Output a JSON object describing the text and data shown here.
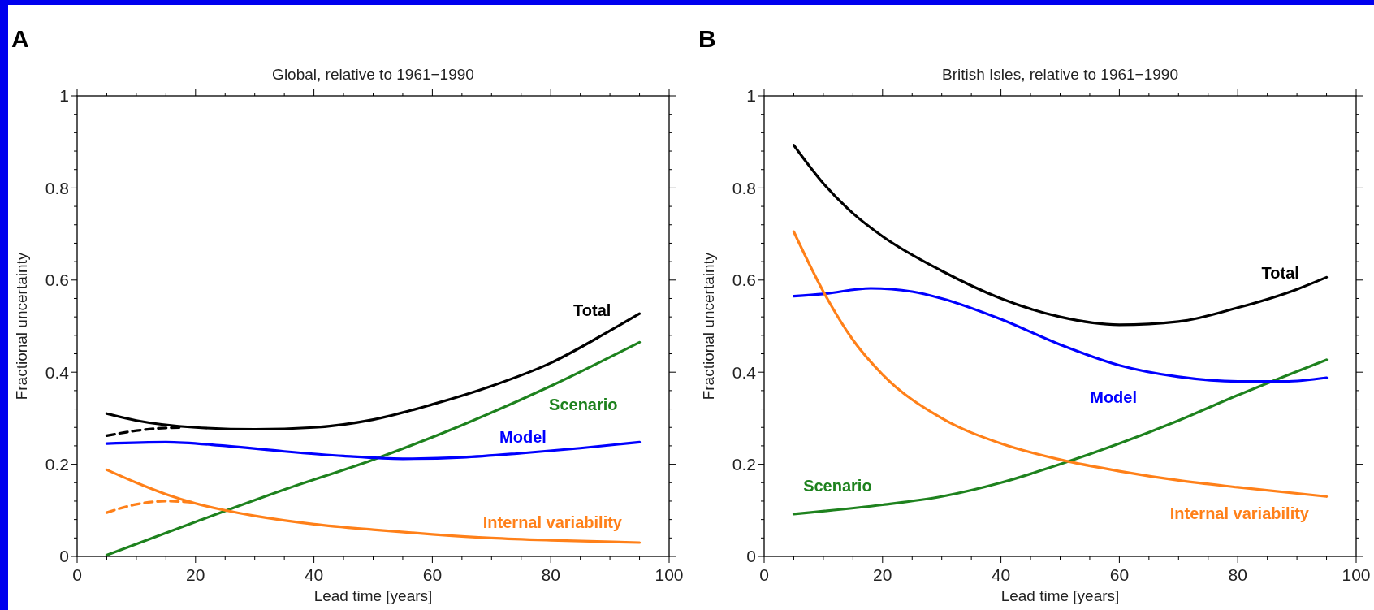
{
  "chart_data": [
    {
      "type": "line",
      "title": "Global, relative to 1961−1990",
      "xlabel": "Lead time  [years]",
      "ylabel": "Fractional uncertainty",
      "annotations": [
        "A"
      ],
      "xlim": [
        0,
        100
      ],
      "ylim": [
        0,
        1
      ],
      "xticks": [
        0,
        {
          "value": 5,
          "label": null
        },
        {
          "value": 10,
          "label": null
        },
        {
          "value": 15,
          "label": null
        },
        20,
        {
          "value": 25,
          "label": null
        },
        {
          "value": 30,
          "label": null
        },
        {
          "value": 35,
          "label": null
        },
        40,
        {
          "value": 45,
          "label": null
        },
        {
          "value": 50,
          "label": null
        },
        {
          "value": 55,
          "label": null
        },
        60,
        {
          "value": 65,
          "label": null
        },
        {
          "value": 70,
          "label": null
        },
        {
          "value": 75,
          "label": null
        },
        80,
        {
          "value": 85,
          "label": null
        },
        {
          "value": 90,
          "label": null
        },
        {
          "value": 95,
          "label": null
        },
        100
      ],
      "yticks": [
        0,
        {
          "value": 0.04,
          "label": null
        },
        {
          "value": 0.08,
          "label": null
        },
        {
          "value": 0.12,
          "label": null
        },
        {
          "value": 0.16,
          "label": null
        },
        0.2,
        {
          "value": 0.24,
          "label": null
        },
        {
          "value": 0.28,
          "label": null
        },
        {
          "value": 0.32,
          "label": null
        },
        {
          "value": 0.36,
          "label": null
        },
        0.4,
        {
          "value": 0.44,
          "label": null
        },
        {
          "value": 0.48,
          "label": null
        },
        {
          "value": 0.52,
          "label": null
        },
        {
          "value": 0.56,
          "label": null
        },
        0.6,
        {
          "value": 0.64,
          "label": null
        },
        {
          "value": 0.68,
          "label": null
        },
        {
          "value": 0.72,
          "label": null
        },
        {
          "value": 0.76,
          "label": null
        },
        0.8,
        {
          "value": 0.84,
          "label": null
        },
        {
          "value": 0.88,
          "label": null
        },
        {
          "value": 0.92,
          "label": null
        },
        {
          "value": 0.96,
          "label": null
        },
        1
      ],
      "grid": false,
      "legend": false,
      "marker": "none",
      "series": [
        {
          "name": "Total",
          "color": "#000000",
          "line_style": "solid",
          "x": [
            5,
            10,
            20,
            30,
            40,
            50,
            60,
            70,
            80,
            90,
            95
          ],
          "values": [
            0.31,
            0.295,
            0.28,
            0.276,
            0.28,
            0.297,
            0.33,
            0.37,
            0.42,
            0.49,
            0.527
          ]
        },
        {
          "name": "Scenario",
          "color": "#1e821e",
          "line_style": "solid",
          "x": [
            5,
            20,
            35,
            50,
            65,
            80,
            95
          ],
          "values": [
            0.003,
            0.075,
            0.145,
            0.21,
            0.285,
            0.37,
            0.465
          ]
        },
        {
          "name": "Model",
          "color": "#0000ff",
          "line_style": "solid",
          "x": [
            5,
            15,
            25,
            35,
            45,
            55,
            65,
            75,
            85,
            95
          ],
          "values": [
            0.245,
            0.248,
            0.24,
            0.228,
            0.218,
            0.212,
            0.215,
            0.224,
            0.235,
            0.248
          ]
        },
        {
          "name": "Internal variability",
          "color": "#ff8019",
          "line_style": "solid",
          "x": [
            5,
            10,
            15,
            20,
            25,
            30,
            40,
            50,
            60,
            70,
            80,
            95
          ],
          "values": [
            0.188,
            0.16,
            0.135,
            0.115,
            0.1,
            0.088,
            0.07,
            0.058,
            0.048,
            0.04,
            0.035,
            0.03
          ]
        },
        {
          "color": "#000000",
          "line_style": "dashed",
          "x": [
            5,
            10,
            15,
            18
          ],
          "values": [
            0.262,
            0.273,
            0.279,
            0.28
          ]
        },
        {
          "color": "#ff8019",
          "line_style": "dashed",
          "x": [
            5,
            10,
            15,
            20
          ],
          "values": [
            0.095,
            0.113,
            0.12,
            0.117
          ]
        }
      ]
    },
    {
      "type": "line",
      "title": "British Isles, relative to 1961−1990",
      "xlabel": "Lead time  [years]",
      "ylabel": "Fractional uncertainty",
      "annotations": [
        "B"
      ],
      "xlim": [
        0,
        100
      ],
      "ylim": [
        0,
        1
      ],
      "xticks": [
        0,
        {
          "value": 5,
          "label": null
        },
        {
          "value": 10,
          "label": null
        },
        {
          "value": 15,
          "label": null
        },
        20,
        {
          "value": 25,
          "label": null
        },
        {
          "value": 30,
          "label": null
        },
        {
          "value": 35,
          "label": null
        },
        40,
        {
          "value": 45,
          "label": null
        },
        {
          "value": 50,
          "label": null
        },
        {
          "value": 55,
          "label": null
        },
        60,
        {
          "value": 65,
          "label": null
        },
        {
          "value": 70,
          "label": null
        },
        {
          "value": 75,
          "label": null
        },
        80,
        {
          "value": 85,
          "label": null
        },
        {
          "value": 90,
          "label": null
        },
        {
          "value": 95,
          "label": null
        },
        100
      ],
      "yticks": [
        0,
        {
          "value": 0.04,
          "label": null
        },
        {
          "value": 0.08,
          "label": null
        },
        {
          "value": 0.12,
          "label": null
        },
        {
          "value": 0.16,
          "label": null
        },
        0.2,
        {
          "value": 0.24,
          "label": null
        },
        {
          "value": 0.28,
          "label": null
        },
        {
          "value": 0.32,
          "label": null
        },
        {
          "value": 0.36,
          "label": null
        },
        0.4,
        {
          "value": 0.44,
          "label": null
        },
        {
          "value": 0.48,
          "label": null
        },
        {
          "value": 0.52,
          "label": null
        },
        {
          "value": 0.56,
          "label": null
        },
        0.6,
        {
          "value": 0.64,
          "label": null
        },
        {
          "value": 0.68,
          "label": null
        },
        {
          "value": 0.72,
          "label": null
        },
        {
          "value": 0.76,
          "label": null
        },
        0.8,
        {
          "value": 0.84,
          "label": null
        },
        {
          "value": 0.88,
          "label": null
        },
        {
          "value": 0.92,
          "label": null
        },
        {
          "value": 0.96,
          "label": null
        },
        1
      ],
      "grid": false,
      "legend": false,
      "marker": "none",
      "series": [
        {
          "name": "Total",
          "color": "#000000",
          "line_style": "solid",
          "x": [
            5,
            10,
            15,
            20,
            30,
            40,
            50,
            60,
            70,
            80,
            90,
            95
          ],
          "values": [
            0.893,
            0.81,
            0.745,
            0.695,
            0.62,
            0.56,
            0.52,
            0.503,
            0.51,
            0.54,
            0.58,
            0.606
          ]
        },
        {
          "name": "Scenario",
          "color": "#1e821e",
          "line_style": "solid",
          "x": [
            5,
            20,
            30,
            40,
            50,
            60,
            70,
            80,
            95
          ],
          "values": [
            0.092,
            0.112,
            0.13,
            0.16,
            0.2,
            0.245,
            0.295,
            0.35,
            0.427
          ]
        },
        {
          "name": "Model",
          "color": "#0000ff",
          "line_style": "solid",
          "x": [
            5,
            10,
            18,
            25,
            30,
            40,
            50,
            60,
            70,
            80,
            88,
            95
          ],
          "values": [
            0.565,
            0.57,
            0.582,
            0.575,
            0.56,
            0.515,
            0.46,
            0.415,
            0.39,
            0.38,
            0.38,
            0.388
          ]
        },
        {
          "name": "Internal variability",
          "color": "#ff8019",
          "line_style": "solid",
          "x": [
            5,
            10,
            15,
            20,
            30,
            40,
            50,
            60,
            70,
            80,
            95
          ],
          "values": [
            0.705,
            0.575,
            0.47,
            0.395,
            0.3,
            0.245,
            0.21,
            0.185,
            0.165,
            0.15,
            0.13
          ]
        }
      ]
    }
  ]
}
